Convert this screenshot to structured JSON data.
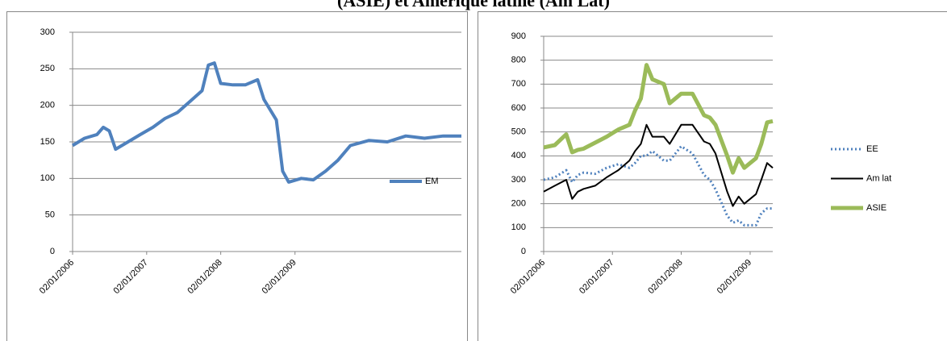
{
  "title": "(ASIE) et Amérique latine (Am Lat)",
  "chart_data": [
    {
      "type": "line",
      "x": [
        "02/01/2006",
        "02/03/2006",
        "02/05/2006",
        "02/06/2006",
        "02/07/2006",
        "02/08/2006",
        "02/10/2006",
        "02/12/2006",
        "02/02/2007",
        "02/04/2007",
        "02/06/2007",
        "02/08/2007",
        "02/10/2007",
        "02/11/2007",
        "02/12/2007",
        "02/01/2008",
        "02/03/2008",
        "02/05/2008",
        "02/07/2008",
        "02/08/2008",
        "02/10/2008",
        "02/11/2008",
        "02/12/2008",
        "02/02/2009",
        "02/04/2009",
        "02/06/2009",
        "02/08/2009",
        "02/10/2009",
        "02/01/2010",
        "02/04/2010",
        "02/07/2010",
        "02/10/2010",
        "02/01/2011",
        "02/04/2011"
      ],
      "series": [
        {
          "name": "EM",
          "color": "#4f81bd",
          "width": 4,
          "values": [
            145,
            155,
            160,
            170,
            165,
            140,
            150,
            160,
            170,
            182,
            190,
            205,
            220,
            255,
            258,
            230,
            228,
            228,
            235,
            208,
            180,
            110,
            95,
            100,
            98,
            110,
            125,
            145,
            152,
            150,
            158,
            155,
            158,
            158
          ]
        }
      ],
      "xlim": [
        "02/01/2006",
        "02/04/2011"
      ],
      "xticks": [
        "02/01/2006",
        "02/01/2007",
        "02/01/2008",
        "02/01/2009"
      ],
      "ylim": [
        0,
        300
      ],
      "yticks": [
        0,
        50,
        100,
        150,
        200,
        250,
        300
      ],
      "grid": true,
      "legend": "right"
    },
    {
      "type": "line",
      "x": [
        "02/01/2006",
        "02/03/2006",
        "02/05/2006",
        "02/06/2006",
        "02/07/2006",
        "02/08/2006",
        "02/10/2006",
        "02/12/2006",
        "02/02/2007",
        "02/04/2007",
        "02/05/2007",
        "02/06/2007",
        "02/07/2007",
        "02/08/2007",
        "02/10/2007",
        "02/11/2007",
        "02/01/2008",
        "02/03/2008",
        "02/05/2008",
        "02/06/2008",
        "02/07/2008",
        "02/09/2008",
        "02/10/2008",
        "02/11/2008",
        "02/12/2008",
        "02/02/2009",
        "02/03/2009",
        "02/04/2009",
        "02/05/2009"
      ],
      "series": [
        {
          "name": "EE",
          "color": "#4f81bd",
          "width": 3,
          "style": "dotted",
          "values": [
            300,
            310,
            340,
            290,
            320,
            330,
            325,
            350,
            365,
            350,
            370,
            400,
            400,
            420,
            380,
            380,
            440,
            410,
            320,
            300,
            260,
            150,
            120,
            130,
            110,
            110,
            160,
            180,
            180
          ]
        },
        {
          "name": "Am lat",
          "color": "#000000",
          "width": 2,
          "style": "solid",
          "values": [
            250,
            275,
            300,
            220,
            250,
            262,
            275,
            310,
            340,
            380,
            420,
            450,
            530,
            480,
            480,
            450,
            530,
            530,
            460,
            450,
            410,
            250,
            190,
            230,
            200,
            240,
            300,
            370,
            350
          ]
        },
        {
          "name": "ASIE",
          "color": "#9bbb59",
          "width": 5,
          "style": "solid",
          "values": [
            435,
            445,
            490,
            415,
            425,
            430,
            455,
            480,
            510,
            530,
            590,
            640,
            780,
            720,
            700,
            620,
            660,
            660,
            570,
            560,
            530,
            400,
            330,
            390,
            350,
            390,
            450,
            540,
            545
          ]
        }
      ],
      "xlim": [
        "02/01/2006",
        "02/05/2009"
      ],
      "xticks": [
        "02/01/2006",
        "02/01/2007",
        "02/01/2008",
        "02/01/2009"
      ],
      "ylim": [
        0,
        900
      ],
      "yticks": [
        0,
        100,
        200,
        300,
        400,
        500,
        600,
        700,
        800,
        900
      ],
      "grid": true,
      "legend": "right"
    }
  ]
}
